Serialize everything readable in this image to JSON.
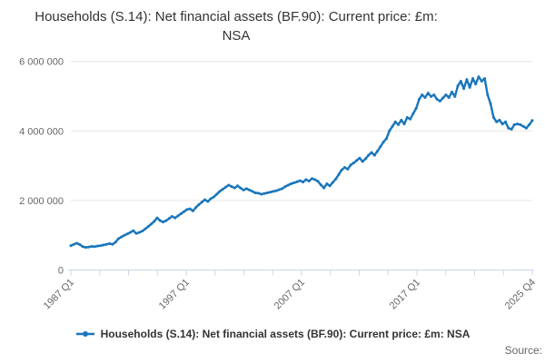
{
  "title": "Households (S.14): Net financial assets (BF.90): Current price: £m: NSA",
  "legend": {
    "label": "Households (S.14): Net financial assets (BF.90): Current price: £m: NSA"
  },
  "source_label": "Source:",
  "colors": {
    "line": "#1976bb",
    "gridline": "#e6e6e6",
    "axis": "#ccd6eb",
    "axis_label": "#666666",
    "title_text": "#333333",
    "legend_text": "#333333",
    "source_text": "#666666"
  },
  "chart_data": {
    "type": "line",
    "title": "Households (S.14): Net financial assets (BF.90): Current price: £m: NSA",
    "unit": "£m",
    "frequency": "quarterly",
    "x_start": "1987 Q1",
    "x_end": "2025 Q4",
    "ylim": [
      0,
      6000000
    ],
    "grid": "horizontal-only",
    "legend_position": "bottom",
    "y_axis": {
      "tick_values": [
        0,
        2000000,
        4000000,
        6000000
      ],
      "tick_labels": [
        "0",
        "2 000 000",
        "4 000 000",
        "6 000 000"
      ]
    },
    "x_axis": {
      "minor_tick_total": 17,
      "labeled_ticks": [
        {
          "index": 0,
          "label": "1987 Q1"
        },
        {
          "index": 4,
          "label": "1997 Q1"
        },
        {
          "index": 8,
          "label": "2007 Q1"
        },
        {
          "index": 12,
          "label": "2017 Q1"
        },
        {
          "index": 16,
          "label": "2025 Q4"
        }
      ],
      "label_rotation": -45
    },
    "series": [
      {
        "name": "Households (S.14): Net financial assets (BF.90): Current price: £m: NSA",
        "values": [
          700000,
          740000,
          770000,
          730000,
          670000,
          650000,
          660000,
          680000,
          670000,
          690000,
          700000,
          720000,
          740000,
          760000,
          740000,
          800000,
          900000,
          950000,
          1000000,
          1040000,
          1080000,
          1130000,
          1050000,
          1080000,
          1120000,
          1180000,
          1250000,
          1320000,
          1400000,
          1500000,
          1420000,
          1380000,
          1420000,
          1480000,
          1540000,
          1500000,
          1560000,
          1620000,
          1680000,
          1740000,
          1760000,
          1700000,
          1800000,
          1880000,
          1950000,
          2020000,
          1970000,
          2050000,
          2100000,
          2180000,
          2260000,
          2320000,
          2380000,
          2440000,
          2400000,
          2360000,
          2420000,
          2360000,
          2300000,
          2340000,
          2300000,
          2260000,
          2220000,
          2210000,
          2180000,
          2200000,
          2220000,
          2240000,
          2260000,
          2280000,
          2310000,
          2340000,
          2400000,
          2440000,
          2480000,
          2510000,
          2540000,
          2570000,
          2530000,
          2600000,
          2560000,
          2630000,
          2600000,
          2550000,
          2450000,
          2360000,
          2480000,
          2420000,
          2520000,
          2620000,
          2750000,
          2880000,
          2950000,
          2900000,
          3020000,
          3080000,
          3150000,
          3220000,
          3120000,
          3200000,
          3300000,
          3380000,
          3300000,
          3420000,
          3550000,
          3680000,
          3780000,
          4000000,
          4130000,
          4260000,
          4180000,
          4310000,
          4200000,
          4390000,
          4340000,
          4500000,
          4650000,
          4910000,
          5040000,
          4960000,
          5090000,
          4990000,
          5040000,
          4910000,
          4860000,
          4950000,
          5040000,
          4960000,
          5120000,
          4990000,
          5300000,
          5430000,
          5220000,
          5480000,
          5250000,
          5510000,
          5350000,
          5560000,
          5430000,
          5510000,
          5040000,
          4780000,
          4390000,
          4260000,
          4310000,
          4200000,
          4260000,
          4080000,
          4050000,
          4180000,
          4200000,
          4180000,
          4130000,
          4080000,
          4180000,
          4300000
        ]
      }
    ]
  }
}
